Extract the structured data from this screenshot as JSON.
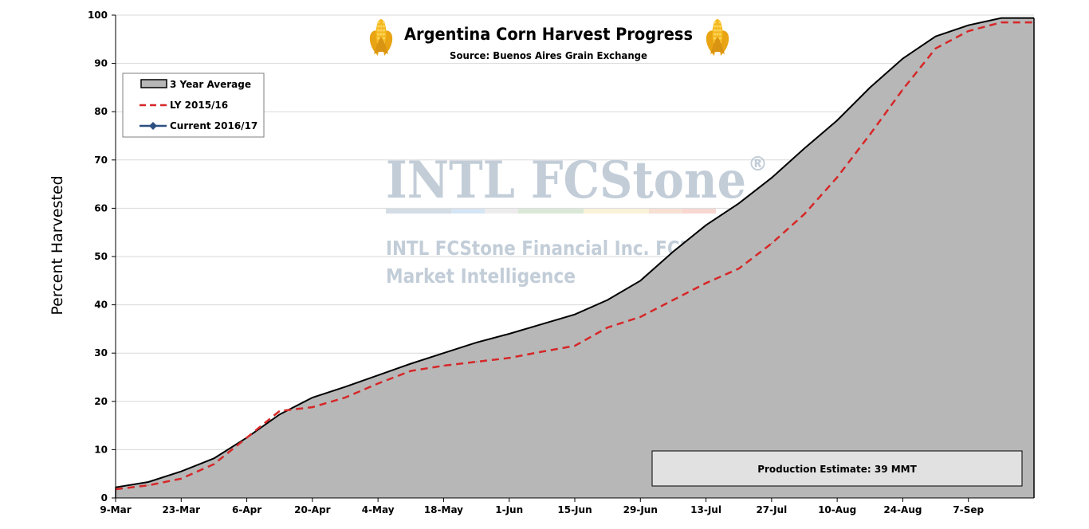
{
  "chart_data": {
    "type": "area",
    "title": "Argentina Corn Harvest Progress",
    "subtitle": "Source: Buenos Aires Grain Exchange",
    "ylabel": "Percent Harvested",
    "xlabel": "",
    "ylim": [
      0,
      100
    ],
    "yticks": [
      0,
      10,
      20,
      30,
      40,
      50,
      60,
      70,
      80,
      90,
      100
    ],
    "x_range": [
      "9-Mar",
      "21-Sep"
    ],
    "xticks": [
      "9-Mar",
      "23-Mar",
      "6-Apr",
      "20-Apr",
      "4-May",
      "18-May",
      "1-Jun",
      "15-Jun",
      "29-Jun",
      "13-Jul",
      "27-Jul",
      "10-Aug",
      "24-Aug",
      "7-Sep"
    ],
    "grid": true,
    "legend": {
      "placement": "top-left",
      "entries": [
        "3 Year Average",
        "LY 2015/16",
        "Current 2016/17"
      ]
    },
    "series": [
      {
        "name": "3 Year Average",
        "style": "area",
        "fill": "#b7b7b7",
        "color": "#000000",
        "x": [
          "9-Mar",
          "16-Mar",
          "23-Mar",
          "30-Mar",
          "6-Apr",
          "13-Apr",
          "20-Apr",
          "27-Apr",
          "4-May",
          "11-May",
          "18-May",
          "25-May",
          "1-Jun",
          "8-Jun",
          "15-Jun",
          "22-Jun",
          "29-Jun",
          "6-Jul",
          "13-Jul",
          "20-Jul",
          "27-Jul",
          "3-Aug",
          "10-Aug",
          "17-Aug",
          "24-Aug",
          "31-Aug",
          "7-Sep",
          "14-Sep"
        ],
        "values": [
          2.2,
          3.3,
          5.5,
          8.2,
          12.5,
          17.3,
          20.8,
          23,
          25.4,
          27.8,
          30,
          32.2,
          34,
          36,
          38,
          41,
          45,
          51,
          56.5,
          61,
          66.3,
          72.4,
          78.2,
          85,
          91,
          95.6,
          97.9,
          99.4
        ]
      },
      {
        "name": "LY 2015/16",
        "style": "dashed-line",
        "color": "#d62728",
        "x": [
          "9-Mar",
          "16-Mar",
          "23-Mar",
          "30-Mar",
          "6-Apr",
          "13-Apr",
          "20-Apr",
          "27-Apr",
          "4-May",
          "11-May",
          "18-May",
          "25-May",
          "1-Jun",
          "8-Jun",
          "15-Jun",
          "22-Jun",
          "29-Jun",
          "6-Jul",
          "13-Jul",
          "20-Jul",
          "27-Jul",
          "3-Aug",
          "10-Aug",
          "17-Aug",
          "24-Aug",
          "31-Aug",
          "7-Sep",
          "14-Sep"
        ],
        "values": [
          1.8,
          2.6,
          4,
          7,
          12.5,
          18,
          18.8,
          20.8,
          23.7,
          26.3,
          27.4,
          28.2,
          29,
          30.3,
          31.5,
          35.3,
          37.5,
          41,
          44.5,
          47.5,
          52.7,
          58.8,
          66.4,
          75.3,
          84.6,
          93.1,
          96.7,
          98.5
        ]
      },
      {
        "name": "Current 2016/17",
        "style": "line-marker",
        "color": "#2b4f81",
        "x": [],
        "values": []
      }
    ],
    "annotations": [
      {
        "text": "Production Estimate: 39 MMT",
        "placement": "bottom-right"
      }
    ]
  },
  "watermark": {
    "logo": "INTL FCStone",
    "registered_mark": "®",
    "line1": "INTL FCStone Financial Inc. FCM Division",
    "line2": "Market Intelligence"
  },
  "colors": {
    "area_fill": "#b7b7b7",
    "area_edge": "#000000",
    "ly_line": "#d62728",
    "current_line": "#2b4f81",
    "grid": "#d9d9d9",
    "corn": "#f2b71f"
  },
  "icons": [
    "corn-cob-icon",
    "corn-cob-icon"
  ]
}
